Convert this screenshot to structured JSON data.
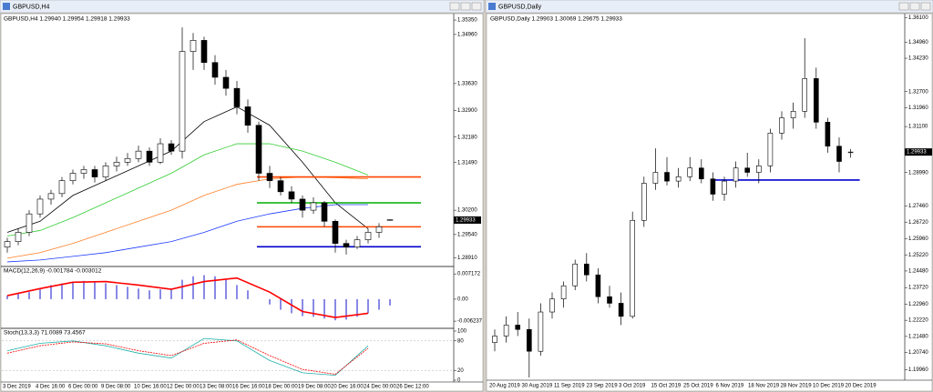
{
  "left": {
    "title": "GBPUSD,H4",
    "header": "GBPUSD,H4 1.29940 1.29954 1.29918 1.29933",
    "ylim": [
      1.287,
      1.3545
    ],
    "yticks": [
      {
        "value": 1.3535,
        "label": "1.35350"
      },
      {
        "value": 1.3496,
        "label": "1.34960"
      },
      {
        "value": 1.3363,
        "label": "1.33630"
      },
      {
        "value": 1.329,
        "label": "1.32900"
      },
      {
        "value": 1.3218,
        "label": "1.32180"
      },
      {
        "value": 1.3149,
        "label": "1.31490"
      },
      {
        "value": 1.302,
        "label": "1.30200"
      },
      {
        "value": 1.2954,
        "label": "1.29540"
      },
      {
        "value": 1.2891,
        "label": "1.28910"
      }
    ],
    "current": {
      "value": 1.29933,
      "label": "1.29933"
    },
    "candles": [
      [
        1.292,
        1.2945,
        1.2905,
        1.2935
      ],
      [
        1.2935,
        1.297,
        1.2925,
        1.296
      ],
      [
        1.296,
        1.302,
        1.295,
        1.301
      ],
      [
        1.301,
        1.306,
        1.3,
        1.305
      ],
      [
        1.305,
        1.3075,
        1.3035,
        1.3065
      ],
      [
        1.3065,
        1.311,
        1.3055,
        1.31
      ],
      [
        1.31,
        1.313,
        1.309,
        1.312
      ],
      [
        1.312,
        1.314,
        1.3105,
        1.313
      ],
      [
        1.313,
        1.314,
        1.3095,
        1.311
      ],
      [
        1.311,
        1.315,
        1.31,
        1.314
      ],
      [
        1.314,
        1.3165,
        1.3125,
        1.315
      ],
      [
        1.315,
        1.3175,
        1.314,
        1.316
      ],
      [
        1.316,
        1.3195,
        1.315,
        1.318
      ],
      [
        1.318,
        1.319,
        1.314,
        1.315
      ],
      [
        1.315,
        1.3215,
        1.3145,
        1.32
      ],
      [
        1.32,
        1.321,
        1.317,
        1.318
      ],
      [
        1.318,
        1.3515,
        1.316,
        1.345
      ],
      [
        1.345,
        1.35,
        1.34,
        1.348
      ],
      [
        1.348,
        1.349,
        1.34,
        1.342
      ],
      [
        1.342,
        1.344,
        1.336,
        1.338
      ],
      [
        1.338,
        1.34,
        1.333,
        1.335
      ],
      [
        1.335,
        1.337,
        1.328,
        1.33
      ],
      [
        1.33,
        1.332,
        1.323,
        1.325
      ],
      [
        1.325,
        1.326,
        1.31,
        1.312
      ],
      [
        1.312,
        1.314,
        1.308,
        1.31
      ],
      [
        1.31,
        1.311,
        1.306,
        1.307
      ],
      [
        1.307,
        1.3085,
        1.304,
        1.305
      ],
      [
        1.305,
        1.306,
        1.3,
        1.302
      ],
      [
        1.302,
        1.3055,
        1.301,
        1.304
      ],
      [
        1.304,
        1.3045,
        1.2975,
        1.299
      ],
      [
        1.299,
        1.2995,
        1.2905,
        1.293
      ],
      [
        1.293,
        1.294,
        1.29,
        1.292
      ],
      [
        1.292,
        1.295,
        1.2915,
        1.294
      ],
      [
        1.294,
        1.297,
        1.293,
        1.296
      ],
      [
        1.296,
        1.2985,
        1.2945,
        1.2975
      ],
      [
        1.2994,
        1.29954,
        1.29918,
        1.29933
      ]
    ],
    "sample_x": [
      0,
      3,
      6,
      9,
      12,
      15,
      18,
      21,
      24,
      27,
      30,
      33
    ],
    "ma": [
      {
        "color": "#000000",
        "values": [
          1.296,
          1.299,
          1.306,
          1.31,
          1.314,
          1.318,
          1.326,
          1.33,
          1.325,
          1.315,
          1.304,
          1.297
        ]
      },
      {
        "color": "#32cd32",
        "values": [
          1.295,
          1.2965,
          1.3,
          1.304,
          1.308,
          1.312,
          1.317,
          1.32,
          1.32,
          1.318,
          1.315,
          1.3115
        ]
      },
      {
        "color": "#ff7f27",
        "values": [
          1.289,
          1.2905,
          1.293,
          1.296,
          1.299,
          1.302,
          1.306,
          1.309,
          1.3105,
          1.311,
          1.3108,
          1.3105
        ]
      },
      {
        "color": "#1e3cff",
        "values": [
          1.288,
          1.2885,
          1.2895,
          1.2905,
          1.292,
          1.2935,
          1.296,
          1.299,
          1.301,
          1.3025,
          1.3035,
          1.3035
        ]
      }
    ],
    "levels": [
      {
        "value": 1.311,
        "color": "#ff4500"
      },
      {
        "value": 1.304,
        "color": "#00b000"
      },
      {
        "value": 1.2975,
        "color": "#ff4500"
      },
      {
        "value": 1.2921,
        "color": "#0000cd"
      }
    ],
    "times": [
      "3 Dec 2019",
      "4 Dec 16:00",
      "6 Dec 00:00",
      "9 Dec 08:00",
      "10 Dec 16:00",
      "12 Dec 00:00",
      "13 Dec 08:00",
      "16 Dec 16:00",
      "18 Dec 00:00",
      "19 Dec 08:00",
      "20 Dec 16:00",
      "24 Dec 00:00",
      "26 Dec 12:00"
    ],
    "macd": {
      "label": "MACD(12,26,9) -0.001784 -0.003012",
      "ylim": [
        -0.0075,
        0.0085
      ],
      "yticks": [
        {
          "value": 0.007172,
          "label": "0.007172"
        },
        {
          "value": 0,
          "label": "0.00"
        },
        {
          "value": -0.006237,
          "label": "-0.006237"
        }
      ],
      "histogram": [
        0.001,
        0.0015,
        0.002,
        0.003,
        0.004,
        0.0045,
        0.005,
        0.0052,
        0.005,
        0.0045,
        0.004,
        0.0035,
        0.003,
        0.0025,
        0.0028,
        0.003,
        0.0055,
        0.0065,
        0.0068,
        0.0065,
        0.0055,
        0.004,
        0.0025,
        0.0,
        -0.0015,
        -0.003,
        -0.004,
        -0.0048,
        -0.005,
        -0.0055,
        -0.006,
        -0.0058,
        -0.005,
        -0.004,
        -0.003,
        -0.0018
      ],
      "signal": {
        "color": "#ff0000",
        "values": [
          0.001,
          0.003,
          0.0048,
          0.005,
          0.004,
          0.0028,
          0.005,
          0.006,
          0.002,
          -0.0035,
          -0.0052,
          -0.004
        ]
      }
    },
    "stoch": {
      "label": "Stoch(13,3,3) 71.0089 73.4567",
      "ylim": [
        0,
        100
      ],
      "yticks": [
        100,
        80,
        20,
        0
      ],
      "main": {
        "color": "#20b2aa",
        "values": [
          60,
          75,
          80,
          70,
          55,
          45,
          85,
          80,
          40,
          15,
          10,
          70
        ]
      },
      "signal": {
        "color": "#ff0000",
        "values": [
          55,
          70,
          78,
          74,
          60,
          50,
          75,
          82,
          50,
          22,
          12,
          65
        ]
      }
    }
  },
  "right": {
    "title": "GBPUSD,Daily",
    "header": "GBPUSD,Daily 1.29903 1.30069 1.29675 1.29933",
    "ylim": [
      1.196,
      1.3615
    ],
    "yticks": [
      {
        "value": 1.361,
        "label": "1.36100"
      },
      {
        "value": 1.3496,
        "label": "1.34960"
      },
      {
        "value": 1.3423,
        "label": "1.34230"
      },
      {
        "value": 1.327,
        "label": "1.32700"
      },
      {
        "value": 1.3196,
        "label": "1.31960"
      },
      {
        "value": 1.311,
        "label": "1.31100"
      },
      {
        "value": 1.2899,
        "label": "1.28990"
      },
      {
        "value": 1.2746,
        "label": "1.27460"
      },
      {
        "value": 1.2672,
        "label": "1.26720"
      },
      {
        "value": 1.2596,
        "label": "1.25960"
      },
      {
        "value": 1.2522,
        "label": "1.25220"
      },
      {
        "value": 1.2448,
        "label": "1.24480"
      },
      {
        "value": 1.2372,
        "label": "1.23720"
      },
      {
        "value": 1.2296,
        "label": "1.22960"
      },
      {
        "value": 1.2222,
        "label": "1.22220"
      },
      {
        "value": 1.2148,
        "label": "1.21480"
      },
      {
        "value": 1.2074,
        "label": "1.20740"
      },
      {
        "value": 1.1996,
        "label": "1.19960"
      }
    ],
    "current": {
      "value": 1.29933,
      "label": "1.29933"
    },
    "candles": [
      [
        1.212,
        1.218,
        1.208,
        1.215
      ],
      [
        1.215,
        1.224,
        1.212,
        1.22
      ],
      [
        1.22,
        1.226,
        1.215,
        1.218
      ],
      [
        1.218,
        1.223,
        1.196,
        1.208
      ],
      [
        1.208,
        1.23,
        1.206,
        1.226
      ],
      [
        1.226,
        1.235,
        1.223,
        1.232
      ],
      [
        1.232,
        1.24,
        1.228,
        1.238
      ],
      [
        1.238,
        1.25,
        1.236,
        1.248
      ],
      [
        1.248,
        1.253,
        1.24,
        1.243
      ],
      [
        1.243,
        1.246,
        1.23,
        1.233
      ],
      [
        1.233,
        1.238,
        1.228,
        1.23
      ],
      [
        1.23,
        1.235,
        1.22,
        1.224
      ],
      [
        1.224,
        1.272,
        1.223,
        1.268
      ],
      [
        1.268,
        1.288,
        1.265,
        1.285
      ],
      [
        1.285,
        1.301,
        1.282,
        1.29
      ],
      [
        1.29,
        1.297,
        1.284,
        1.286
      ],
      [
        1.286,
        1.292,
        1.283,
        1.288
      ],
      [
        1.288,
        1.297,
        1.286,
        1.292
      ],
      [
        1.292,
        1.296,
        1.285,
        1.287
      ],
      [
        1.287,
        1.29,
        1.277,
        1.28
      ],
      [
        1.28,
        1.288,
        1.277,
        1.286
      ],
      [
        1.286,
        1.295,
        1.283,
        1.292
      ],
      [
        1.292,
        1.299,
        1.288,
        1.29
      ],
      [
        1.29,
        1.296,
        1.285,
        1.293
      ],
      [
        1.293,
        1.31,
        1.29,
        1.308
      ],
      [
        1.308,
        1.318,
        1.305,
        1.315
      ],
      [
        1.315,
        1.322,
        1.31,
        1.318
      ],
      [
        1.318,
        1.3515,
        1.315,
        1.333
      ],
      [
        1.333,
        1.338,
        1.31,
        1.313
      ],
      [
        1.313,
        1.315,
        1.299,
        1.302
      ],
      [
        1.302,
        1.306,
        1.29,
        1.295
      ],
      [
        1.29903,
        1.30069,
        1.29675,
        1.29933
      ]
    ],
    "levels": [
      {
        "value": 1.2865,
        "color": "#0000cd"
      }
    ],
    "times": [
      "20 Aug 2019",
      "30 Aug 2019",
      "11 Sep 2019",
      "23 Sep 2019",
      "3 Oct 2019",
      "15 Oct 2019",
      "25 Oct 2019",
      "6 Nov 2019",
      "18 Nov 2019",
      "28 Nov 2019",
      "10 Dec 2019",
      "20 Dec 2019"
    ]
  }
}
